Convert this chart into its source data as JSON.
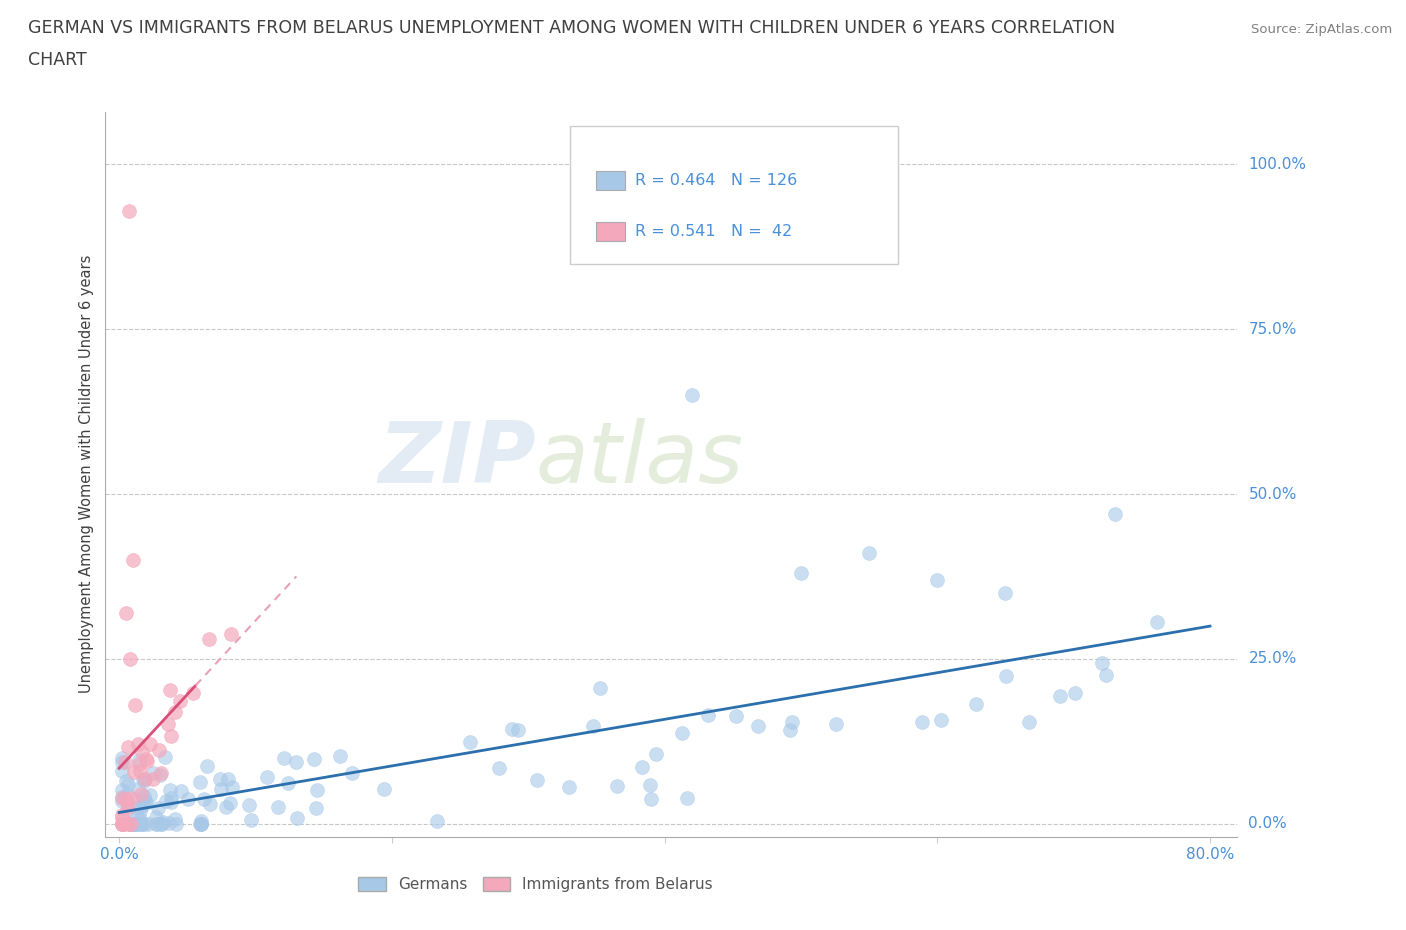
{
  "title_line1": "GERMAN VS IMMIGRANTS FROM BELARUS UNEMPLOYMENT AMONG WOMEN WITH CHILDREN UNDER 6 YEARS CORRELATION",
  "title_line2": "CHART",
  "source": "Source: ZipAtlas.com",
  "ylabel": "Unemployment Among Women with Children Under 6 years",
  "xlim": [
    -0.01,
    0.82
  ],
  "ylim": [
    -0.02,
    1.08
  ],
  "blue_R": 0.464,
  "blue_N": 126,
  "pink_R": 0.541,
  "pink_N": 42,
  "blue_color": "#a8c8e8",
  "pink_color": "#f4a8bc",
  "blue_line_color": "#2c6fad",
  "pink_line_solid_color": "#d94f7a",
  "pink_line_dash_color": "#e8a0b8",
  "watermark_zip": "ZIP",
  "watermark_atlas": "atlas",
  "background_color": "#ffffff",
  "grid_color": "#c8c8c8",
  "ytick_color": "#4a90d9",
  "xtick_color": "#4a90d9",
  "title_color": "#404040",
  "source_color": "#808080",
  "ylabel_color": "#404040"
}
